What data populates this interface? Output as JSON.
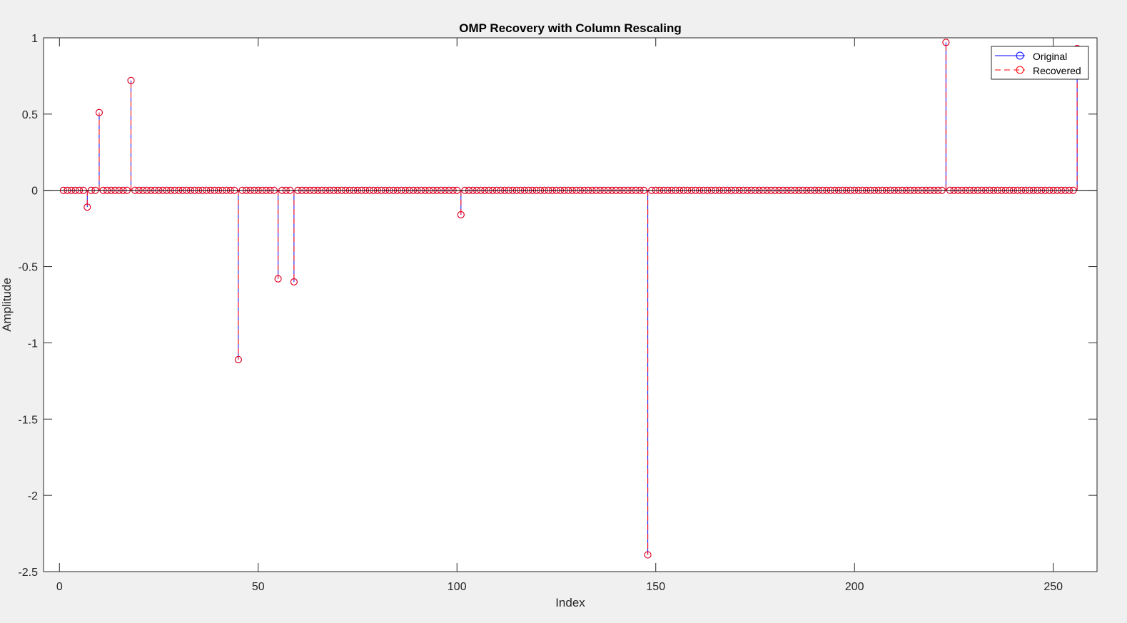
{
  "chart_data": {
    "type": "stem",
    "title": "OMP Recovery with Column Rescaling",
    "xlabel": "Index",
    "ylabel": "Amplitude",
    "xlim": [
      -4,
      261
    ],
    "ylim": [
      -2.5,
      1
    ],
    "xticks": [
      0,
      50,
      100,
      150,
      200,
      250
    ],
    "xtick_labels": [
      "0",
      "50",
      "100",
      "150",
      "200",
      "250"
    ],
    "yticks": [
      1,
      0.5,
      0,
      -0.5,
      -1,
      -1.5,
      -2,
      -2.5
    ],
    "ytick_labels": [
      "1",
      "0.5",
      "0",
      "-0.5",
      "-1",
      "-1.5",
      "-2",
      "-2.5"
    ],
    "n_samples": 256,
    "x_start": 1,
    "nonzeros": [
      {
        "index": 7,
        "value": -0.11
      },
      {
        "index": 10,
        "value": 0.51
      },
      {
        "index": 18,
        "value": 0.72
      },
      {
        "index": 45,
        "value": -1.11
      },
      {
        "index": 55,
        "value": -0.58
      },
      {
        "index": 59,
        "value": -0.6
      },
      {
        "index": 101,
        "value": -0.16
      },
      {
        "index": 148,
        "value": -2.39
      },
      {
        "index": 223,
        "value": 0.97
      },
      {
        "index": 256,
        "value": 0.93
      }
    ],
    "series": [
      {
        "name": "Original",
        "color": "#0000ff",
        "line_style": "solid",
        "marker": "circle"
      },
      {
        "name": "Recovered",
        "color": "#ff0000",
        "line_style": "dashed",
        "marker": "circle"
      }
    ],
    "baseline": 0,
    "grid": false,
    "legend_position": "top-right"
  }
}
